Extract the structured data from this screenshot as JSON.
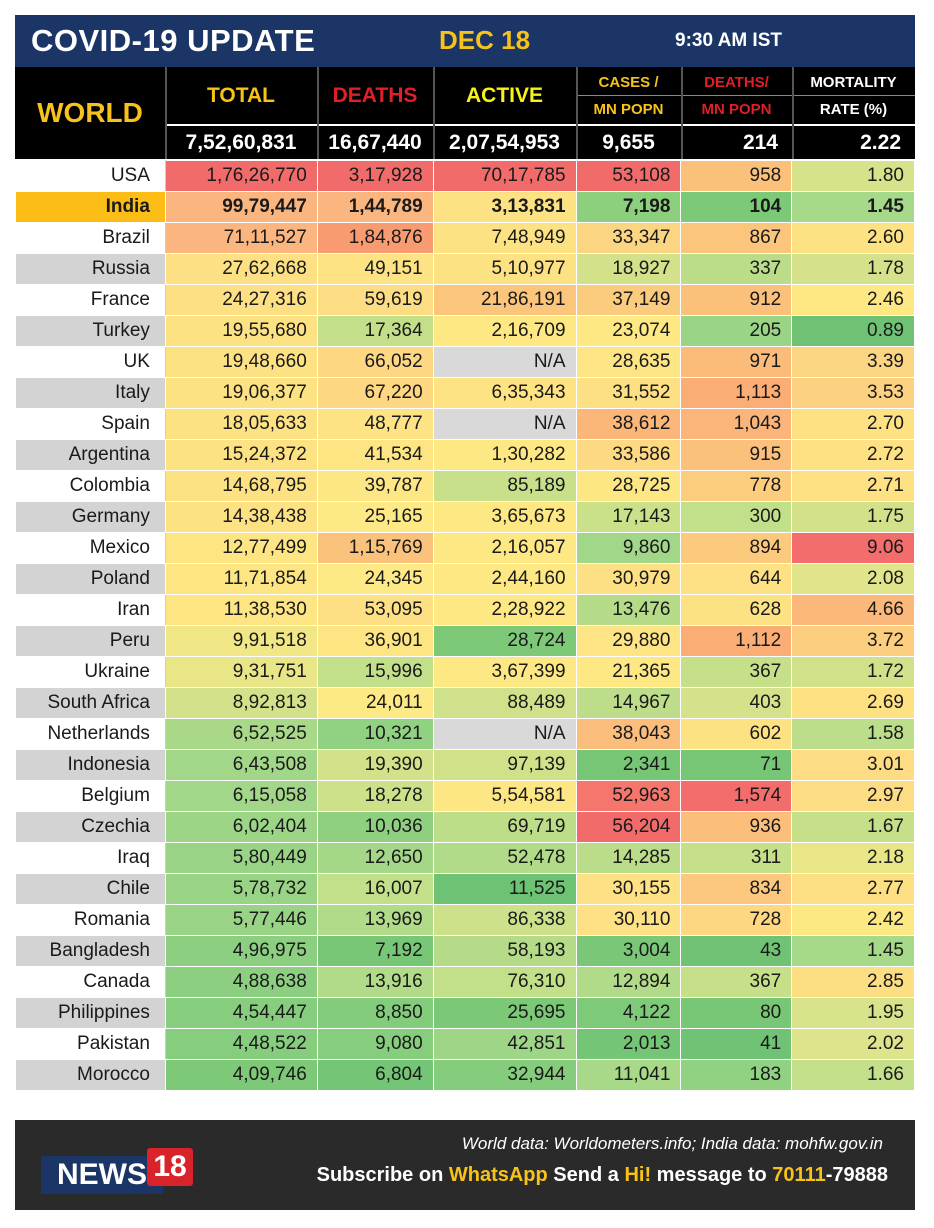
{
  "header": {
    "title": "COVID-19 UPDATE",
    "date": "DEC 18",
    "time": "9:30 AM IST"
  },
  "world_label": "WORLD",
  "columns": {
    "total": "TOTAL",
    "deaths": "DEATHS",
    "active": "ACTIVE",
    "cases_mn_1": "CASES /",
    "cases_mn_2": "MN POPN",
    "deaths_mn_1": "DEATHS/",
    "deaths_mn_2": "MN POPN",
    "mortality_1": "MORTALITY",
    "mortality_2": "RATE (%)"
  },
  "world_totals": {
    "total": "7,52,60,831",
    "deaths": "16,67,440",
    "active": "2,07,54,953",
    "cases_mn": "9,655",
    "deaths_mn": "214",
    "mortality": "2.22"
  },
  "colors": {
    "header_blue": "#1a3566",
    "header_yellow": "#f7c21a",
    "deaths_red": "#e01f26",
    "world_black": "#000000"
  },
  "rows": [
    {
      "country": "USA",
      "total": "1,76,26,770",
      "deaths": "3,17,928",
      "active": "70,17,785",
      "cases_mn": "53,108",
      "deaths_mn": "958",
      "mortality": "1.80",
      "c": [
        "#f26b6b",
        "#f26b6b",
        "#f26b6b",
        "#f26b6b",
        "#fbc079",
        "#d7e28b"
      ]
    },
    {
      "country": "India",
      "total": "99,79,447",
      "deaths": "1,44,789",
      "active": "3,13,831",
      "cases_mn": "7,198",
      "deaths_mn": "104",
      "mortality": "1.45",
      "c": [
        "#fbb57f",
        "#fbb57f",
        "#fde284",
        "#8ccf7d",
        "#7cc978",
        "#a7d98a"
      ]
    },
    {
      "country": "Brazil",
      "total": "71,11,527",
      "deaths": "1,84,876",
      "active": "7,48,949",
      "cases_mn": "33,347",
      "deaths_mn": "867",
      "mortality": "2.60",
      "c": [
        "#fbb57f",
        "#f89b70",
        "#fde284",
        "#fcd582",
        "#fbc57c",
        "#fde283"
      ]
    },
    {
      "country": "Russia",
      "total": "27,62,668",
      "deaths": "49,151",
      "active": "5,10,977",
      "cases_mn": "18,927",
      "deaths_mn": "337",
      "mortality": "1.78",
      "c": [
        "#fde083",
        "#fde384",
        "#fde284",
        "#d2e18a",
        "#bbdd8a",
        "#d6e28b"
      ]
    },
    {
      "country": "France",
      "total": "24,27,316",
      "deaths": "59,619",
      "active": "21,86,191",
      "cases_mn": "37,149",
      "deaths_mn": "912",
      "mortality": "2.46",
      "c": [
        "#fde083",
        "#fddd83",
        "#fbc57c",
        "#fbcb7e",
        "#fbc17a",
        "#fde884"
      ]
    },
    {
      "country": "Turkey",
      "total": "19,55,680",
      "deaths": "17,364",
      "active": "2,16,709",
      "cases_mn": "23,074",
      "deaths_mn": "205",
      "mortality": "0.89",
      "c": [
        "#fde283",
        "#c4df8a",
        "#fde884",
        "#fde884",
        "#99d487",
        "#6fc274"
      ]
    },
    {
      "country": "UK",
      "total": "19,48,660",
      "deaths": "66,052",
      "active": "N/A",
      "cases_mn": "28,635",
      "deaths_mn": "971",
      "mortality": "3.39",
      "c": [
        "#fde283",
        "#fdd782",
        "#d9d9d9",
        "#fde484",
        "#fbbc7a",
        "#fcd582"
      ]
    },
    {
      "country": "Italy",
      "total": "19,06,377",
      "deaths": "67,220",
      "active": "6,35,343",
      "cases_mn": "31,552",
      "deaths_mn": "1,113",
      "mortality": "3.53",
      "c": [
        "#fde283",
        "#fdd782",
        "#fde384",
        "#fde083",
        "#fbad76",
        "#fcd282"
      ]
    },
    {
      "country": "Spain",
      "total": "18,05,633",
      "deaths": "48,777",
      "active": "N/A",
      "cases_mn": "38,612",
      "deaths_mn": "1,043",
      "mortality": "2.70",
      "c": [
        "#fde283",
        "#fde384",
        "#d9d9d9",
        "#fbb67a",
        "#fbb47a",
        "#fde183"
      ]
    },
    {
      "country": "Argentina",
      "total": "15,24,372",
      "deaths": "41,534",
      "active": "1,30,282",
      "cases_mn": "33,586",
      "deaths_mn": "915",
      "mortality": "2.72",
      "c": [
        "#fde284",
        "#fde584",
        "#fde884",
        "#fdd983",
        "#fbc07b",
        "#fde183"
      ]
    },
    {
      "country": "Colombia",
      "total": "14,68,795",
      "deaths": "39,787",
      "active": "85,189",
      "cases_mn": "28,725",
      "deaths_mn": "778",
      "mortality": "2.71",
      "c": [
        "#fde284",
        "#fde684",
        "#c8e08a",
        "#fde684",
        "#fdcd7e",
        "#fde183"
      ]
    },
    {
      "country": "Germany",
      "total": "14,38,438",
      "deaths": "25,165",
      "active": "3,65,673",
      "cases_mn": "17,143",
      "deaths_mn": "300",
      "mortality": "1.75",
      "c": [
        "#fde284",
        "#fde985",
        "#fde884",
        "#cae18a",
        "#c2df8a",
        "#d2e18a"
      ]
    },
    {
      "country": "Mexico",
      "total": "12,77,499",
      "deaths": "1,15,769",
      "active": "2,16,057",
      "cases_mn": "9,860",
      "deaths_mn": "894",
      "mortality": "9.06",
      "c": [
        "#fde584",
        "#fbc27b",
        "#fde884",
        "#a2d688",
        "#fcca7d",
        "#f26d6b"
      ]
    },
    {
      "country": "Poland",
      "total": "11,71,854",
      "deaths": "24,345",
      "active": "2,44,160",
      "cases_mn": "30,979",
      "deaths_mn": "644",
      "mortality": "2.08",
      "c": [
        "#fde584",
        "#fde985",
        "#fde884",
        "#fde083",
        "#fde184",
        "#e0e48b"
      ]
    },
    {
      "country": "Iran",
      "total": "11,38,530",
      "deaths": "53,095",
      "active": "2,28,922",
      "cases_mn": "13,476",
      "deaths_mn": "628",
      "mortality": "4.66",
      "c": [
        "#fde584",
        "#fde083",
        "#fde884",
        "#b5db89",
        "#fde284",
        "#fbb87a"
      ]
    },
    {
      "country": "Peru",
      "total": "9,91,518",
      "deaths": "36,901",
      "active": "28,724",
      "cases_mn": "29,880",
      "deaths_mn": "1,112",
      "mortality": "3.72",
      "c": [
        "#f2e786",
        "#fde584",
        "#7ec978",
        "#fde484",
        "#fbad76",
        "#fcce7f"
      ]
    },
    {
      "country": "Ukraine",
      "total": "9,31,751",
      "deaths": "15,996",
      "active": "3,67,399",
      "cases_mn": "21,365",
      "deaths_mn": "367",
      "mortality": "1.72",
      "c": [
        "#e9e687",
        "#c2df8a",
        "#fde884",
        "#fde884",
        "#c6e08a",
        "#d1e18a"
      ]
    },
    {
      "country": "South Africa",
      "total": "8,92,813",
      "deaths": "24,011",
      "active": "88,489",
      "cases_mn": "14,967",
      "deaths_mn": "403",
      "mortality": "2.69",
      "c": [
        "#d3e28a",
        "#fde985",
        "#cfe18a",
        "#bedd8a",
        "#d5e28b",
        "#fde183"
      ]
    },
    {
      "country": "Netherlands",
      "total": "6,52,525",
      "deaths": "10,321",
      "active": "N/A",
      "cases_mn": "38,043",
      "deaths_mn": "602",
      "mortality": "1.58",
      "c": [
        "#a8d888",
        "#91d182",
        "#d9d9d9",
        "#fbbd7b",
        "#fde284",
        "#bcdd8a"
      ]
    },
    {
      "country": "Indonesia",
      "total": "6,43,508",
      "deaths": "19,390",
      "active": "97,139",
      "cases_mn": "2,341",
      "deaths_mn": "71",
      "mortality": "3.01",
      "c": [
        "#a2d688",
        "#d2e18a",
        "#d1e18a",
        "#76c676",
        "#76c676",
        "#fddc83"
      ]
    },
    {
      "country": "Belgium",
      "total": "6,15,058",
      "deaths": "18,278",
      "active": "5,54,581",
      "cases_mn": "52,963",
      "deaths_mn": "1,574",
      "mortality": "2.97",
      "c": [
        "#a2d688",
        "#cce18a",
        "#fde684",
        "#f5766c",
        "#f26d6b",
        "#fddd83"
      ]
    },
    {
      "country": "Czechia",
      "total": "6,02,404",
      "deaths": "10,036",
      "active": "69,719",
      "cases_mn": "56,204",
      "deaths_mn": "936",
      "mortality": "1.67",
      "c": [
        "#9dd587",
        "#8fcf80",
        "#bedd89",
        "#f26b6b",
        "#fbbf7b",
        "#c6e08a"
      ]
    },
    {
      "country": "Iraq",
      "total": "5,80,449",
      "deaths": "12,650",
      "active": "52,478",
      "cases_mn": "14,285",
      "deaths_mn": "311",
      "mortality": "2.18",
      "c": [
        "#99d486",
        "#a5d788",
        "#b2db89",
        "#bbdd8a",
        "#c6e08a",
        "#e8e687"
      ]
    },
    {
      "country": "Chile",
      "total": "5,78,732",
      "deaths": "16,007",
      "active": "11,525",
      "cases_mn": "30,155",
      "deaths_mn": "834",
      "mortality": "2.77",
      "c": [
        "#99d486",
        "#c2df8a",
        "#6dc274",
        "#fde184",
        "#fcc87d",
        "#fde083"
      ]
    },
    {
      "country": "Romania",
      "total": "5,77,446",
      "deaths": "13,969",
      "active": "86,338",
      "cases_mn": "30,110",
      "deaths_mn": "728",
      "mortality": "2.42",
      "c": [
        "#99d486",
        "#b2db89",
        "#cce18a",
        "#fde184",
        "#fdd881",
        "#fde984"
      ]
    },
    {
      "country": "Bangladesh",
      "total": "4,96,975",
      "deaths": "7,192",
      "active": "58,193",
      "cases_mn": "3,004",
      "deaths_mn": "43",
      "mortality": "1.45",
      "c": [
        "#8dcf80",
        "#78c777",
        "#b5db89",
        "#79c777",
        "#70c374",
        "#a7d98a"
      ]
    },
    {
      "country": "Canada",
      "total": "4,88,638",
      "deaths": "13,916",
      "active": "76,310",
      "cases_mn": "12,894",
      "deaths_mn": "367",
      "mortality": "2.85",
      "c": [
        "#8dcf80",
        "#b2db89",
        "#c2df8a",
        "#b2db89",
        "#c6e08a",
        "#fddf83"
      ]
    },
    {
      "country": "Philippines",
      "total": "4,54,447",
      "deaths": "8,850",
      "active": "25,695",
      "cases_mn": "4,122",
      "deaths_mn": "80",
      "mortality": "1.95",
      "c": [
        "#86cd7d",
        "#83cc7c",
        "#7bc877",
        "#7fca79",
        "#78c777",
        "#d9e38b"
      ]
    },
    {
      "country": "Pakistan",
      "total": "4,48,522",
      "deaths": "9,080",
      "active": "42,851",
      "cases_mn": "2,013",
      "deaths_mn": "41",
      "mortality": "2.02",
      "c": [
        "#86cd7d",
        "#86cd7d",
        "#9fd587",
        "#74c575",
        "#70c374",
        "#dde48b"
      ]
    },
    {
      "country": "Morocco",
      "total": "4,09,746",
      "deaths": "6,804",
      "active": "32,944",
      "cases_mn": "11,041",
      "deaths_mn": "183",
      "mortality": "1.66",
      "c": [
        "#7ec978",
        "#74c575",
        "#85cd7c",
        "#a8d988",
        "#91d182",
        "#c5e08a"
      ]
    }
  ],
  "footer": {
    "source": "World data: Worldometers.info; India data: mohfw.gov.in",
    "sub_1": "Subscribe on ",
    "sub_2": "WhatsApp",
    "sub_3": " Send a ",
    "sub_4": "Hi!",
    "sub_5": " message to ",
    "sub_6": "70111",
    "sub_7": "-79888",
    "logo_text": "NEWS",
    "logo_num": "18"
  }
}
